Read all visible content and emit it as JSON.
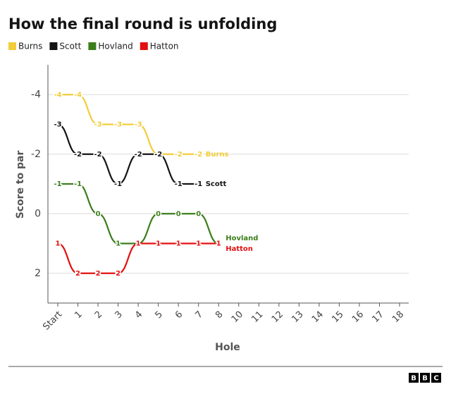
{
  "chart_data": {
    "type": "line",
    "title": "How the final round is unfolding",
    "x_label": "Hole",
    "y_label": "Score to par",
    "categories": [
      "Start",
      "1",
      "2",
      "3",
      "4",
      "5",
      "6",
      "7",
      "8",
      "10",
      "11",
      "12",
      "13",
      "14",
      "15",
      "16",
      "17",
      "18"
    ],
    "series": [
      {
        "name": "Burns",
        "color": "#f2cd3a",
        "values": [
          -4,
          -4,
          -3,
          -3,
          -3,
          -2,
          -2,
          -2,
          null,
          null,
          null,
          null,
          null,
          null,
          null,
          null,
          null,
          null
        ]
      },
      {
        "name": "Scott",
        "color": "#141414",
        "values": [
          -3,
          -2,
          -2,
          -1,
          -2,
          -2,
          -1,
          -1,
          null,
          null,
          null,
          null,
          null,
          null,
          null,
          null,
          null,
          null
        ]
      },
      {
        "name": "Hovland",
        "color": "#3b7d1b",
        "values": [
          -1,
          -1,
          0,
          1,
          1,
          0,
          0,
          0,
          1,
          null,
          null,
          null,
          null,
          null,
          null,
          null,
          null,
          null
        ]
      },
      {
        "name": "Hatton",
        "color": "#e31010",
        "values": [
          1,
          2,
          2,
          2,
          1,
          1,
          1,
          1,
          1,
          null,
          null,
          null,
          null,
          null,
          null,
          null,
          null,
          null
        ]
      }
    ],
    "ylim": [
      -5,
      3
    ],
    "y_inverted": true,
    "yticks": [
      -4,
      -2,
      0,
      2
    ],
    "grid": true,
    "legend": "top-left",
    "logo": [
      "B",
      "B",
      "C"
    ]
  }
}
